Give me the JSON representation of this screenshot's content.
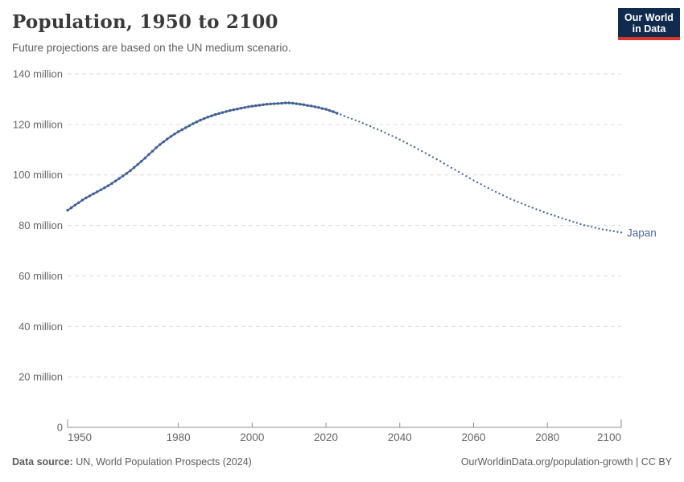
{
  "header": {
    "title": "Population, 1950 to 2100",
    "subtitle": "Future projections are based on the UN medium scenario.",
    "logo_line1": "Our World",
    "logo_line2": "in Data"
  },
  "footer": {
    "datasource_label": "Data source:",
    "datasource_value": " UN, World Population Prospects (2024)",
    "right_text": "OurWorldinData.org/population-growth | CC BY"
  },
  "colors": {
    "line_blue": "#4c6a9c",
    "marker_blue": "#3f5e91",
    "entity_label_blue": "#4c6a9c",
    "gridline_gray": "#dcdcdc",
    "axis_gray": "#8f8f8f",
    "tick_label_gray": "#666666",
    "logo_navy": "#112b4e",
    "logo_red": "#d8352c"
  },
  "chart_data": {
    "type": "line",
    "title": "Population, 1950 to 2100",
    "subtitle": "Future projections are based on the UN medium scenario.",
    "entity_label": "Japan",
    "unit": "million people",
    "grid": true,
    "legend_position": "end-of-line-label",
    "xlim": [
      1950,
      2100
    ],
    "ylim_millions": [
      0,
      140
    ],
    "x_ticks": [
      1950,
      1980,
      2000,
      2020,
      2040,
      2060,
      2080,
      2100
    ],
    "y_ticks": [
      {
        "value": 0,
        "label": "0"
      },
      {
        "value": 20,
        "label": "20 million"
      },
      {
        "value": 40,
        "label": "40 million"
      },
      {
        "value": 60,
        "label": "60 million"
      },
      {
        "value": 80,
        "label": "80 million"
      },
      {
        "value": 100,
        "label": "100 million"
      },
      {
        "value": 120,
        "label": "120 million"
      },
      {
        "value": 140,
        "label": "140 million"
      }
    ],
    "series": [
      {
        "name": "Japan (observed)",
        "style": "solid-with-markers",
        "x_start": 1950,
        "x_step": 1,
        "values_millions": [
          86.0,
          87.0,
          88.0,
          89.0,
          90.0,
          90.9,
          91.7,
          92.5,
          93.3,
          94.1,
          94.9,
          95.7,
          96.6,
          97.6,
          98.6,
          99.6,
          100.6,
          101.7,
          102.9,
          104.1,
          105.4,
          106.7,
          108.1,
          109.4,
          110.8,
          112.0,
          113.1,
          114.2,
          115.2,
          116.2,
          117.1,
          117.9,
          118.7,
          119.5,
          120.3,
          121.0,
          121.7,
          122.3,
          122.9,
          123.4,
          123.9,
          124.3,
          124.7,
          125.1,
          125.5,
          125.8,
          126.1,
          126.4,
          126.7,
          127.0,
          127.2,
          127.4,
          127.6,
          127.8,
          128.0,
          128.1,
          128.2,
          128.3,
          128.4,
          128.5,
          128.5,
          128.4,
          128.2,
          128.0,
          127.8,
          127.5,
          127.3,
          127.0,
          126.7,
          126.3,
          126.0,
          125.5,
          125.0,
          124.4
        ]
      },
      {
        "name": "Japan (UN medium projection)",
        "style": "dotted",
        "x_start": 2023,
        "x_step": 1,
        "values_millions": [
          124.4,
          123.9,
          123.3,
          122.7,
          122.2,
          121.6,
          121.1,
          120.5,
          119.9,
          119.3,
          118.6,
          118.0,
          117.4,
          116.7,
          116.0,
          115.4,
          114.7,
          114.0,
          113.2,
          112.5,
          111.7,
          111.0,
          110.2,
          109.4,
          108.6,
          107.8,
          107.0,
          106.2,
          105.4,
          104.5,
          103.7,
          102.8,
          102.0,
          101.2,
          100.3,
          99.5,
          98.6,
          97.8,
          97.0,
          96.3,
          95.5,
          94.8,
          94.0,
          93.3,
          92.6,
          91.9,
          91.2,
          90.5,
          89.9,
          89.3,
          88.7,
          88.1,
          87.5,
          87.0,
          86.4,
          85.9,
          85.3,
          84.8,
          84.3,
          83.8,
          83.3,
          82.8,
          82.3,
          81.9,
          81.4,
          81.0,
          80.5,
          80.1,
          79.8,
          79.4,
          79.1,
          78.7,
          78.4,
          78.2,
          77.9,
          77.7,
          77.4,
          77.2
        ]
      }
    ]
  }
}
